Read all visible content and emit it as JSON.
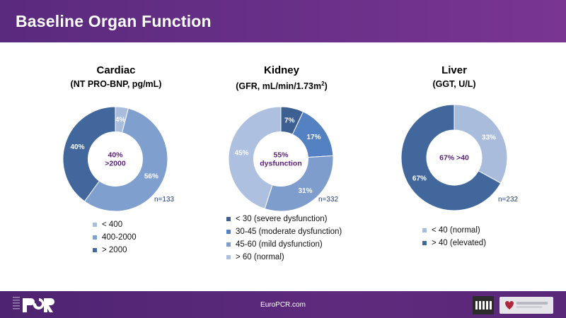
{
  "header": {
    "title": "Baseline Organ Function"
  },
  "footer": {
    "site": "EuroPCR.com"
  },
  "chart_data": [
    {
      "type": "donut",
      "title": "Cardiac",
      "subtitle": "(NT PRO-BNP, pg/mL)",
      "center_text": [
        "40%",
        ">2000"
      ],
      "n_label": "n=133",
      "slices": [
        {
          "label": "< 400",
          "value": 4,
          "value_label": "4%",
          "color": "#a9bcdb"
        },
        {
          "label": "400-2000",
          "value": 56,
          "value_label": "56%",
          "color": "#7f9fcf"
        },
        {
          "label": "> 2000",
          "value": 40,
          "value_label": "40%",
          "color": "#41679c"
        }
      ]
    },
    {
      "type": "donut",
      "title": "Kidney",
      "subtitle_main": "(GFR, mL/min/1.73m",
      "subtitle_sup": "2",
      "subtitle_end": ")",
      "center_text": [
        "55%",
        "dysfunction"
      ],
      "n_label": "n=332",
      "slices": [
        {
          "label": "< 30 (severe dysfunction)",
          "value": 7,
          "value_label": "7%",
          "color": "#3d5f92"
        },
        {
          "label": "30-45 (moderate dysfunction)",
          "value": 17,
          "value_label": "17%",
          "color": "#5381c2"
        },
        {
          "label": "45-60 (mild dysfunction)",
          "value": 31,
          "value_label": "31%",
          "color": "#7e9dcd"
        },
        {
          "label": "> 60 (normal)",
          "value": 45,
          "value_label": "45%",
          "color": "#adc0df"
        }
      ]
    },
    {
      "type": "donut",
      "title": "Liver",
      "subtitle": "(GGT, U/L)",
      "center_text": [
        "67% >40"
      ],
      "n_label": "n=232",
      "slices": [
        {
          "label": "< 40 (normal)",
          "value": 33,
          "value_label": "33%",
          "color": "#a9bcdb"
        },
        {
          "label": "> 40 (elevated)",
          "value": 67,
          "value_label": "67%",
          "color": "#41679c"
        }
      ]
    }
  ]
}
